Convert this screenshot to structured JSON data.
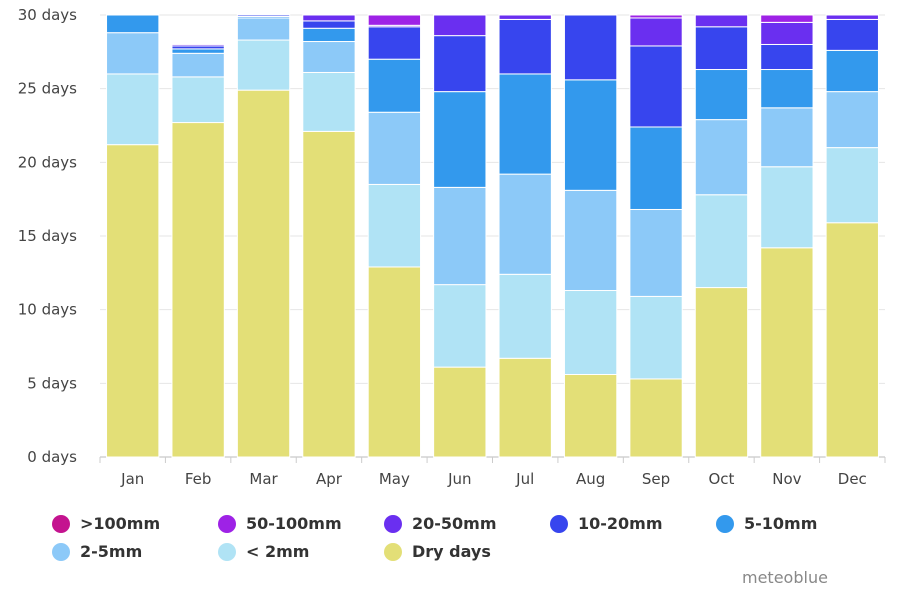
{
  "chart_data": {
    "type": "bar",
    "stacked": true,
    "categories": [
      "Jan",
      "Feb",
      "Mar",
      "Apr",
      "May",
      "Jun",
      "Jul",
      "Aug",
      "Sep",
      "Oct",
      "Nov",
      "Dec"
    ],
    "y_ticks": [
      "0 days",
      "5 days",
      "10 days",
      "15 days",
      "20 days",
      "25 days",
      "30 days"
    ],
    "ylim": [
      0,
      30
    ],
    "grid": true,
    "legend_position": "bottom",
    "series": [
      {
        "name": "Dry days",
        "color": "#e3df77",
        "values": [
          21.2,
          22.7,
          24.9,
          22.1,
          12.9,
          6.1,
          6.7,
          5.6,
          5.3,
          11.5,
          14.2,
          15.9
        ]
      },
      {
        "name": "< 2mm",
        "color": "#b0e3f5",
        "values": [
          4.8,
          3.1,
          3.4,
          4.0,
          5.6,
          5.6,
          5.7,
          5.7,
          5.6,
          6.3,
          5.5,
          5.1
        ]
      },
      {
        "name": "2-5mm",
        "color": "#8cc9f8",
        "values": [
          2.8,
          1.6,
          1.5,
          2.1,
          4.9,
          6.6,
          6.8,
          6.8,
          5.9,
          5.1,
          4.0,
          3.8
        ]
      },
      {
        "name": "5-10mm",
        "color": "#3399ed",
        "values": [
          1.2,
          0.3,
          0.1,
          0.9,
          3.6,
          6.5,
          6.8,
          7.5,
          5.6,
          3.4,
          2.6,
          2.8
        ]
      },
      {
        "name": "10-20mm",
        "color": "#3745ee",
        "values": [
          0.0,
          0.2,
          0.1,
          0.5,
          2.2,
          3.8,
          3.7,
          4.4,
          5.5,
          2.9,
          1.7,
          2.1
        ]
      },
      {
        "name": "20-50mm",
        "color": "#6a2ff0",
        "values": [
          0.0,
          0.1,
          0.0,
          0.4,
          0.1,
          1.4,
          0.3,
          0.0,
          1.9,
          0.8,
          1.5,
          0.3
        ]
      },
      {
        "name": "50-100mm",
        "color": "#9e22e6",
        "values": [
          0.0,
          0.0,
          0.0,
          0.0,
          0.7,
          0.0,
          0.0,
          0.0,
          0.2,
          0.0,
          0.5,
          0.0
        ]
      },
      {
        "name": ">100mm",
        "color": "#c4138f",
        "values": [
          0.0,
          0.0,
          0.0,
          0.0,
          0.0,
          0.0,
          0.0,
          0.0,
          0.0,
          0.0,
          0.0,
          0.0
        ]
      }
    ]
  },
  "legend": [
    {
      "label": ">100mm",
      "color": "#c4138f"
    },
    {
      "label": "50-100mm",
      "color": "#9e22e6"
    },
    {
      "label": "20-50mm",
      "color": "#6a2ff0"
    },
    {
      "label": "10-20mm",
      "color": "#3745ee"
    },
    {
      "label": "5-10mm",
      "color": "#3399ed"
    },
    {
      "label": "2-5mm",
      "color": "#8cc9f8"
    },
    {
      "label": "< 2mm",
      "color": "#b0e3f5"
    },
    {
      "label": "Dry days",
      "color": "#e3df77"
    }
  ],
  "watermark": "meteoblue"
}
